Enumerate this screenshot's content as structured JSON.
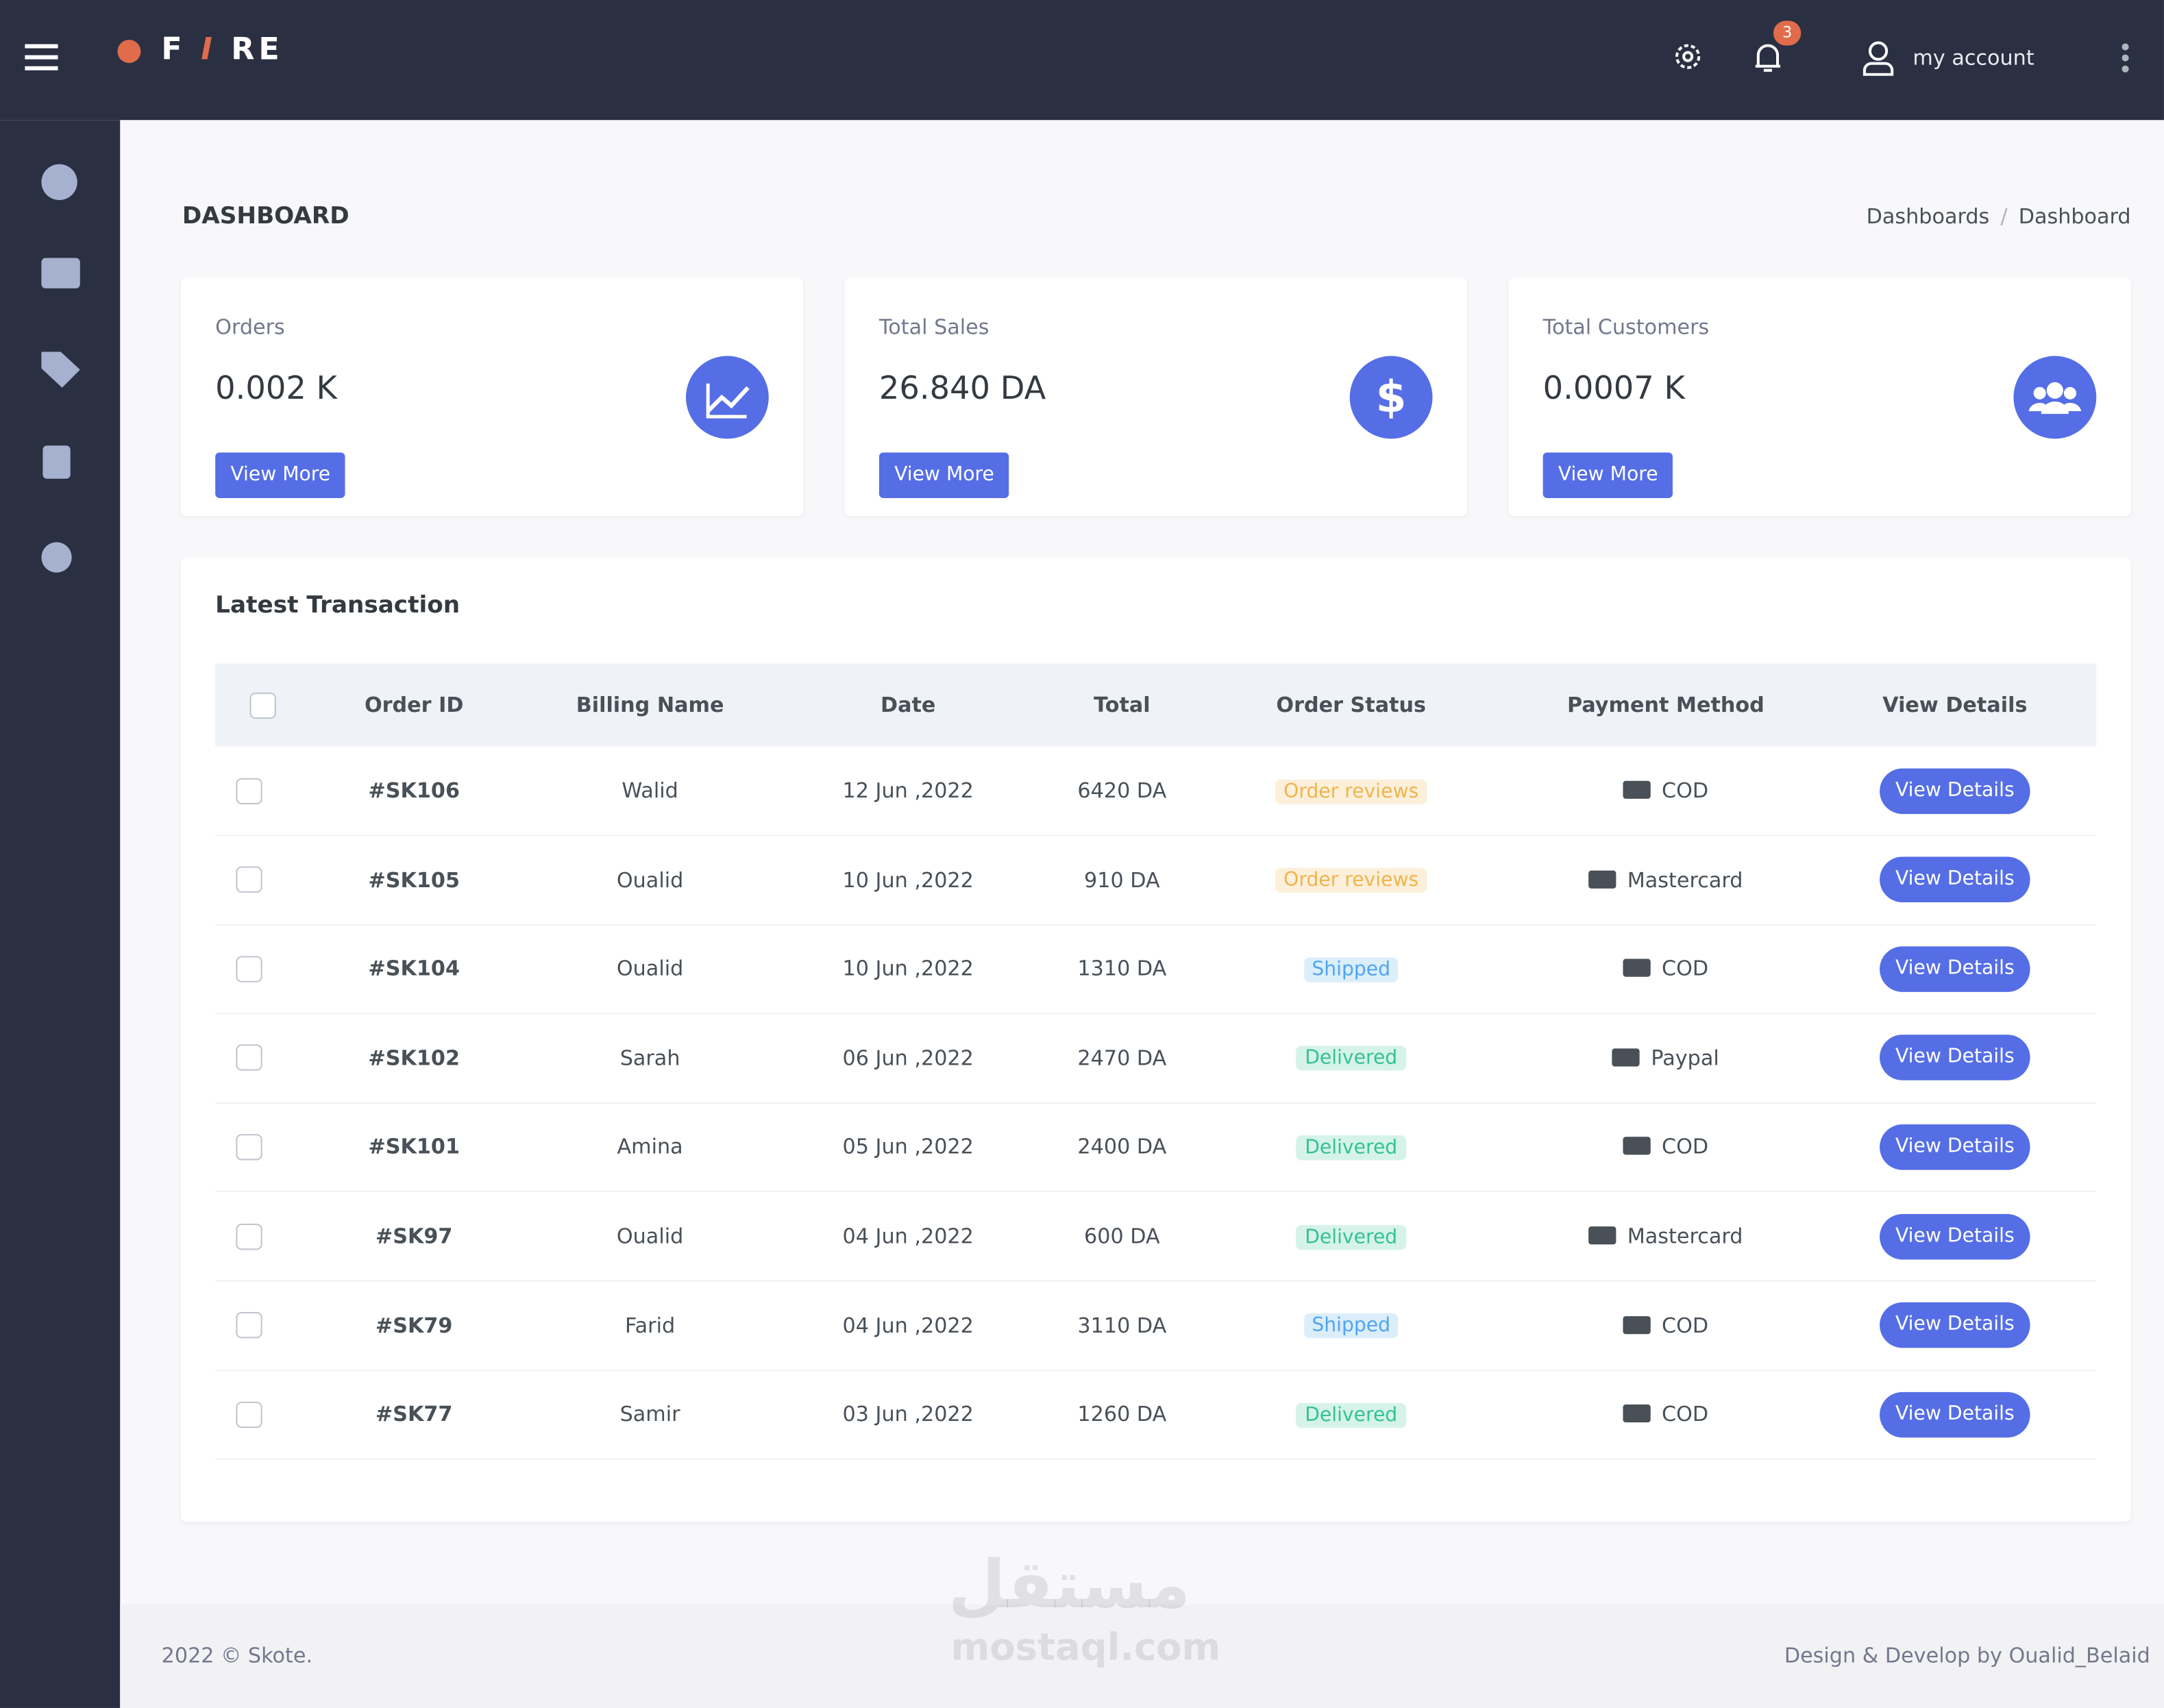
{
  "topbar": {
    "logo": [
      "F",
      "I",
      "RE"
    ],
    "notification_count": "3",
    "account": "my account"
  },
  "page": {
    "title": "DASHBOARD",
    "breadcrumb": [
      "Dashboards",
      "Dashboard"
    ],
    "breadcrumb_separator": "/"
  },
  "cards": [
    {
      "label": "Orders",
      "value": "0.002 K",
      "button": "View More"
    },
    {
      "label": "Total Sales",
      "value": "26.840 DA",
      "button": "View More"
    },
    {
      "label": "Total Customers",
      "value": "0.0007 K",
      "button": "View More"
    }
  ],
  "table": {
    "title": "Latest Transaction",
    "headers": [
      "Order ID",
      "Billing Name",
      "Date",
      "Total",
      "Order Status",
      "Payment Method",
      "View Details"
    ],
    "rows": [
      [
        "#SK106",
        "Walid",
        "12 Jun ,2022",
        "6420 DA",
        "Order reviews",
        "COD",
        "View Details"
      ],
      [
        "#SK105",
        "Oualid",
        "10 Jun ,2022",
        "910 DA",
        "Order reviews",
        "Mastercard",
        "View Details"
      ],
      [
        "#SK104",
        "Oualid",
        "10 Jun ,2022",
        "1310 DA",
        "Shipped",
        "COD",
        "View Details"
      ],
      [
        "#SK102",
        "Sarah",
        "06 Jun ,2022",
        "2470 DA",
        "Delivered",
        "Paypal",
        "View Details"
      ],
      [
        "#SK101",
        "Amina",
        "05 Jun ,2022",
        "2400 DA",
        "Delivered",
        "COD",
        "View Details"
      ],
      [
        "#SK97",
        "Oualid",
        "04 Jun ,2022",
        "600 DA",
        "Delivered",
        "Mastercard",
        "View Details"
      ],
      [
        "#SK79",
        "Farid",
        "04 Jun ,2022",
        "3110 DA",
        "Shipped",
        "COD",
        "View Details"
      ],
      [
        "#SK77",
        "Samir",
        "03 Jun ,2022",
        "1260 DA",
        "Delivered",
        "COD",
        "View Details"
      ]
    ]
  },
  "footer": {
    "left": "2022 © Skote.",
    "right": "Design & Develop by Oualid_Belaid"
  },
  "watermark": {
    "arabic": "مستقل",
    "latin": "mostaql.com"
  }
}
